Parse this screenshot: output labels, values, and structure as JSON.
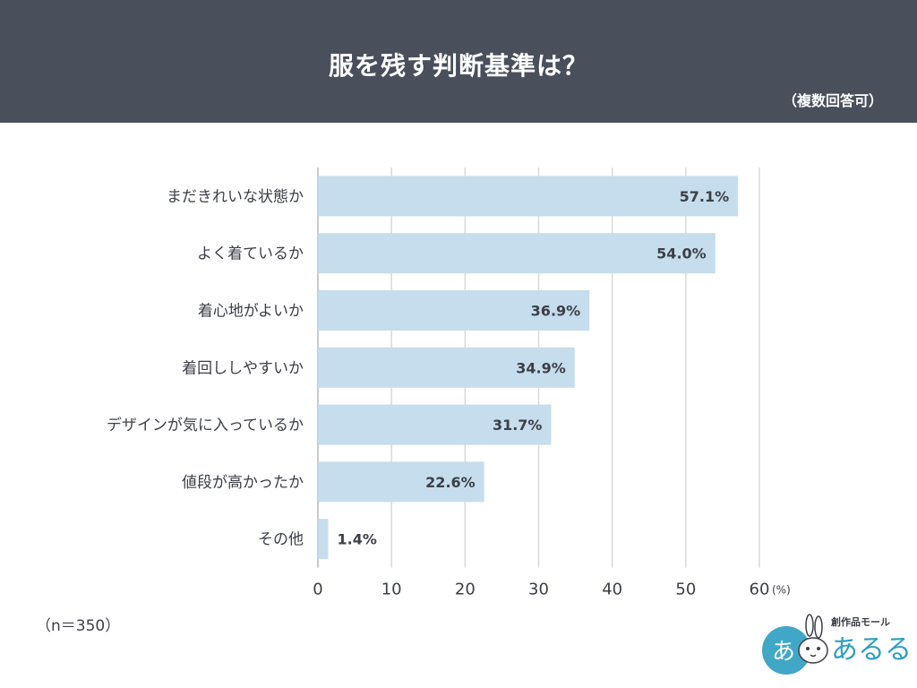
{
  "header": {
    "title": "服を残す判断基準は？",
    "subtitle": "（複数回答可）"
  },
  "footer": {
    "n_label": "（n＝350）"
  },
  "logo": {
    "top_text": "創作品モール",
    "main_text": "あるる",
    "badge_text": "あ",
    "icon": "rabbit-icon"
  },
  "colors": {
    "header_bg": "#4a4f5c",
    "bar": "#c5ddec",
    "grid": "#d9d9d9",
    "text": "#3c3f47",
    "logo_accent": "#2b9fc0"
  },
  "chart_data": {
    "type": "bar",
    "orientation": "horizontal",
    "categories": [
      "まだきれいな状態か",
      "よく着ているか",
      "着心地がよいか",
      "着回ししやすいか",
      "デザインが気に入っているか",
      "値段が高かったか",
      "その他"
    ],
    "values": [
      57.1,
      54.0,
      36.9,
      34.9,
      31.7,
      22.6,
      1.4
    ],
    "data_labels": [
      "57.1%",
      "54.0%",
      "36.9%",
      "34.9%",
      "31.7%",
      "22.6%",
      "1.4%"
    ],
    "xlim": [
      0,
      60
    ],
    "x_ticks": [
      0,
      10,
      20,
      30,
      40,
      50,
      60
    ],
    "x_unit": "(%)",
    "grid": true
  }
}
